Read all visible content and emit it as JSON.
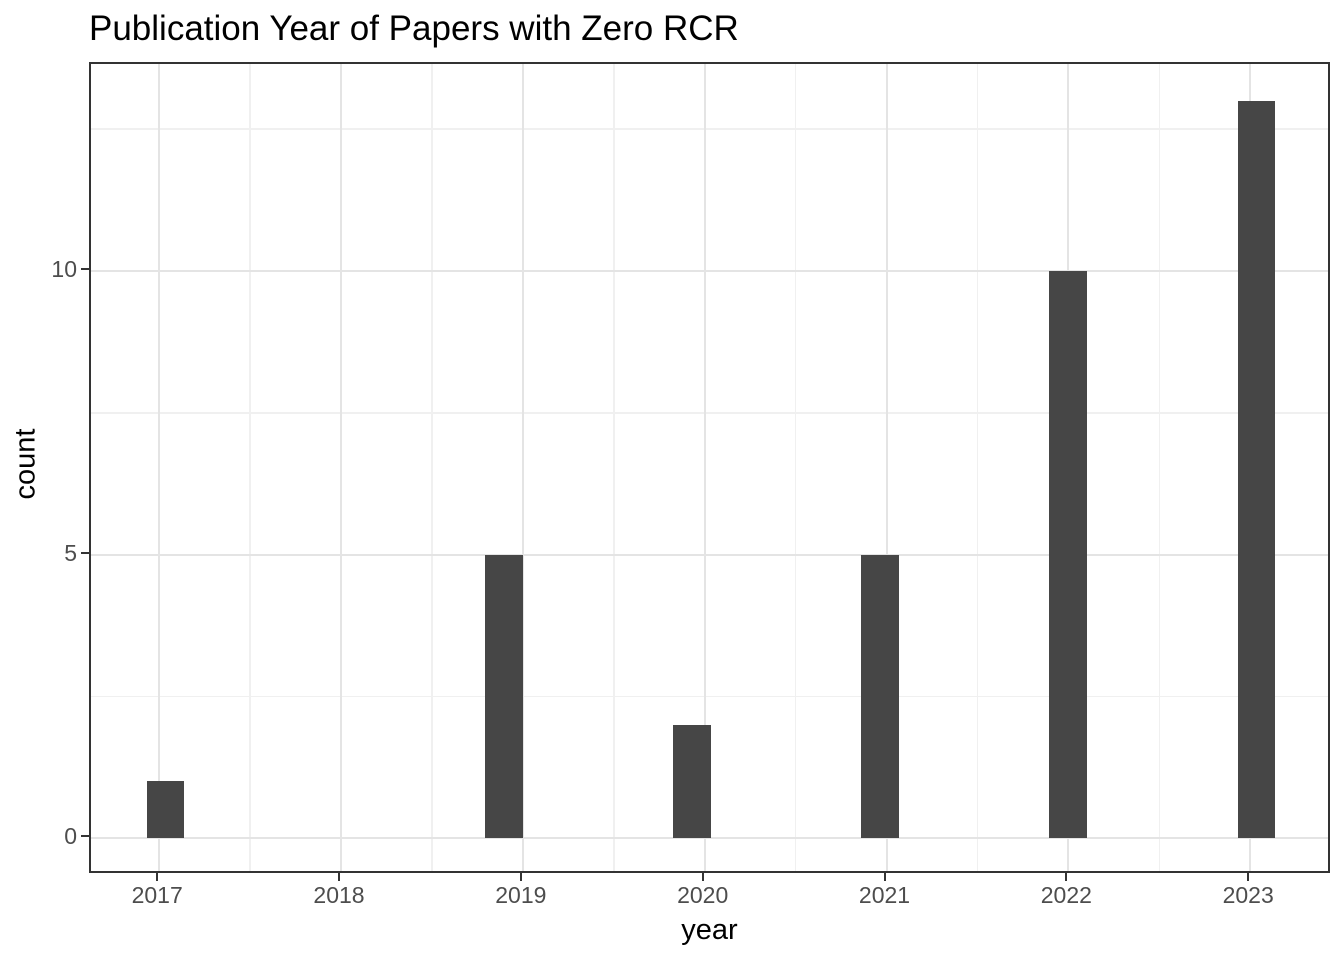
{
  "chart_data": {
    "type": "bar",
    "subtype": "histogram",
    "title": "Publication Year of Papers with Zero RCR",
    "xlabel": "year",
    "ylabel": "count",
    "x_tick_labels": [
      "2017",
      "2018",
      "2019",
      "2020",
      "2021",
      "2022",
      "2023"
    ],
    "x_ticks": [
      2017,
      2018,
      2019,
      2020,
      2021,
      2022,
      2023
    ],
    "y_tick_labels": [
      "0",
      "5",
      "10"
    ],
    "y_ticks": [
      0,
      5,
      10
    ],
    "x_minor_gridlines": [
      2017.5,
      2018.5,
      2019.5,
      2020.5,
      2021.5,
      2022.5
    ],
    "y_minor_gridlines": [
      2.5,
      7.5,
      12.5
    ],
    "xlim": [
      2016.625,
      2023.45
    ],
    "ylim": [
      -0.65,
      13.65
    ],
    "bin_width": 0.2069,
    "categories": [
      2017,
      2018,
      2019,
      2020,
      2021,
      2022,
      2023
    ],
    "values": [
      1,
      0,
      5,
      2,
      5,
      10,
      13
    ],
    "bars": [
      {
        "year": 2017,
        "count": 1,
        "bin_center": 2017.034
      },
      {
        "year": 2018,
        "count": 0,
        "bin_center": 2018.069
      },
      {
        "year": 2019,
        "count": 5,
        "bin_center": 2018.896
      },
      {
        "year": 2020,
        "count": 2,
        "bin_center": 2019.931
      },
      {
        "year": 2021,
        "count": 5,
        "bin_center": 2020.965
      },
      {
        "year": 2022,
        "count": 10,
        "bin_center": 2021.999
      },
      {
        "year": 2023,
        "count": 13,
        "bin_center": 2023.034
      }
    ],
    "grid": "major and minor, light gray on white panel",
    "legend": "none",
    "colors": {
      "bar_fill": "#464646",
      "panel_border": "#333333",
      "grid_major": "#E4E4E4",
      "grid_minor": "#F0F0F0",
      "tick_mark": "#333333",
      "tick_label": "#4D4D4D",
      "axis_title": "#000000",
      "title": "#000000",
      "background": "#FFFFFF"
    }
  }
}
